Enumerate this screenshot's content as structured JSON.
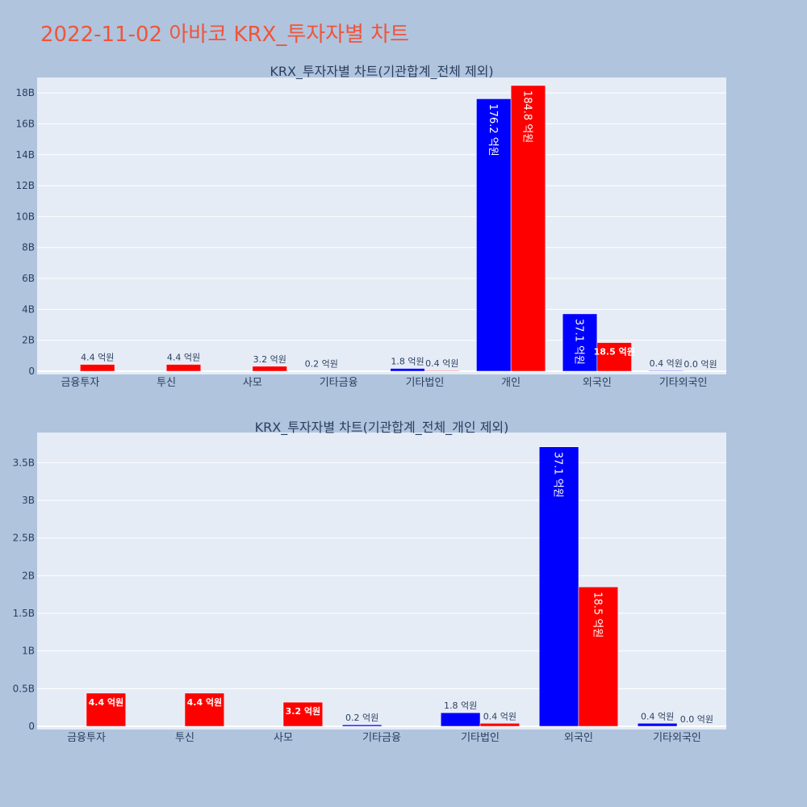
{
  "page": {
    "title": "2022-11-02 아바코 KRX_투자자별 차트"
  },
  "colors": {
    "page_bg": "#b0c4de",
    "plot_bg": "#e5ecf6",
    "title": "#ef553b",
    "text": "#2a3f5f",
    "buy": "#0000ff",
    "sell": "#ff0000"
  },
  "chart_data": [
    {
      "type": "bar",
      "title": "KRX_투자자별 차트(기관합계_전체 제외)",
      "categories": [
        "금융투자",
        "투신",
        "사모",
        "기타금융",
        "기타법인",
        "개인",
        "외국인",
        "기타외국인"
      ],
      "series": [
        {
          "color": "#0000ff",
          "values": [
            0,
            0,
            0,
            0.02,
            0.18,
            17.62,
            3.71,
            0.04
          ],
          "labels": [
            "",
            "",
            "",
            "0.2 억원",
            "1.8 억원",
            "176.2 억원",
            "37.1 억원",
            "0.4 억원"
          ]
        },
        {
          "color": "#ff0000",
          "values": [
            0.44,
            0.44,
            0.32,
            0,
            0.04,
            18.48,
            1.85,
            0.0
          ],
          "labels": [
            "4.4 억원",
            "4.4 억원",
            "3.2 억원",
            "",
            "0.4 억원",
            "184.8 억원",
            "18.5 억원",
            "0.0 억원"
          ]
        }
      ],
      "ylim": [
        0,
        19.0
      ],
      "yticks": [
        0,
        2,
        4,
        6,
        8,
        10,
        12,
        14,
        16,
        18
      ],
      "ytick_labels": [
        "0",
        "2B",
        "4B",
        "6B",
        "8B",
        "10B",
        "12B",
        "14B",
        "16B",
        "18B"
      ],
      "grid": true
    },
    {
      "type": "bar",
      "title": "KRX_투자자별 차트(기관합계_전체_개인 제외)",
      "categories": [
        "금융투자",
        "투신",
        "사모",
        "기타금융",
        "기타법인",
        "외국인",
        "기타외국인"
      ],
      "series": [
        {
          "color": "#0000ff",
          "values": [
            0,
            0,
            0,
            0.02,
            0.18,
            3.71,
            0.04
          ],
          "labels": [
            "",
            "",
            "",
            "0.2 억원",
            "1.8 억원",
            "37.1 억원",
            "0.4 억원"
          ]
        },
        {
          "color": "#ff0000",
          "values": [
            0.44,
            0.44,
            0.32,
            0,
            0.04,
            1.85,
            0.0
          ],
          "labels": [
            "4.4 억원",
            "4.4 억원",
            "3.2 억원",
            "",
            "0.4 억원",
            "18.5 억원",
            "0.0 억원"
          ]
        }
      ],
      "ylim": [
        0,
        3.9
      ],
      "yticks": [
        0,
        0.5,
        1,
        1.5,
        2,
        2.5,
        3,
        3.5
      ],
      "ytick_labels": [
        "0",
        "0.5B",
        "1B",
        "1.5B",
        "2B",
        "2.5B",
        "3B",
        "3.5B"
      ],
      "grid": true
    }
  ]
}
